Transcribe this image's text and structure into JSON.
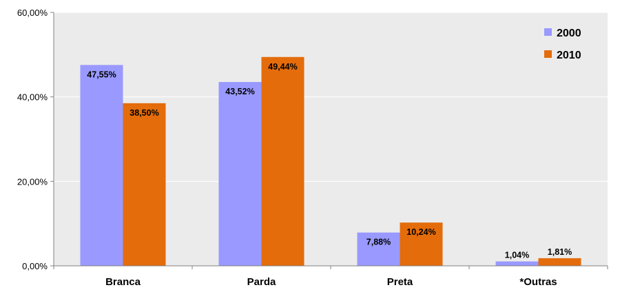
{
  "colors": {
    "plot_bg": "#ebebeb",
    "grid": "#ffffff",
    "axis": "#808080"
  },
  "chart_data": {
    "type": "bar",
    "categories": [
      "Branca",
      "Parda",
      "Preta",
      "*Outras"
    ],
    "series": [
      {
        "name": "2000",
        "color": "#9999ff",
        "values": [
          47.55,
          43.52,
          7.88,
          1.04
        ],
        "labels": [
          "47,55%",
          "43,52%",
          "7,88%",
          "1,04%"
        ]
      },
      {
        "name": "2010",
        "color": "#e46c0a",
        "values": [
          38.5,
          49.44,
          10.24,
          1.81
        ],
        "labels": [
          "38,50%",
          "49,44%",
          "10,24%",
          "1,81%"
        ]
      }
    ],
    "y_ticks": [
      0,
      20,
      40,
      60
    ],
    "y_tick_labels": [
      "0,00%",
      "20,00%",
      "40,00%",
      "60,00%"
    ],
    "ylim": [
      0,
      60
    ],
    "grid": true,
    "legend_position": "top-right"
  }
}
